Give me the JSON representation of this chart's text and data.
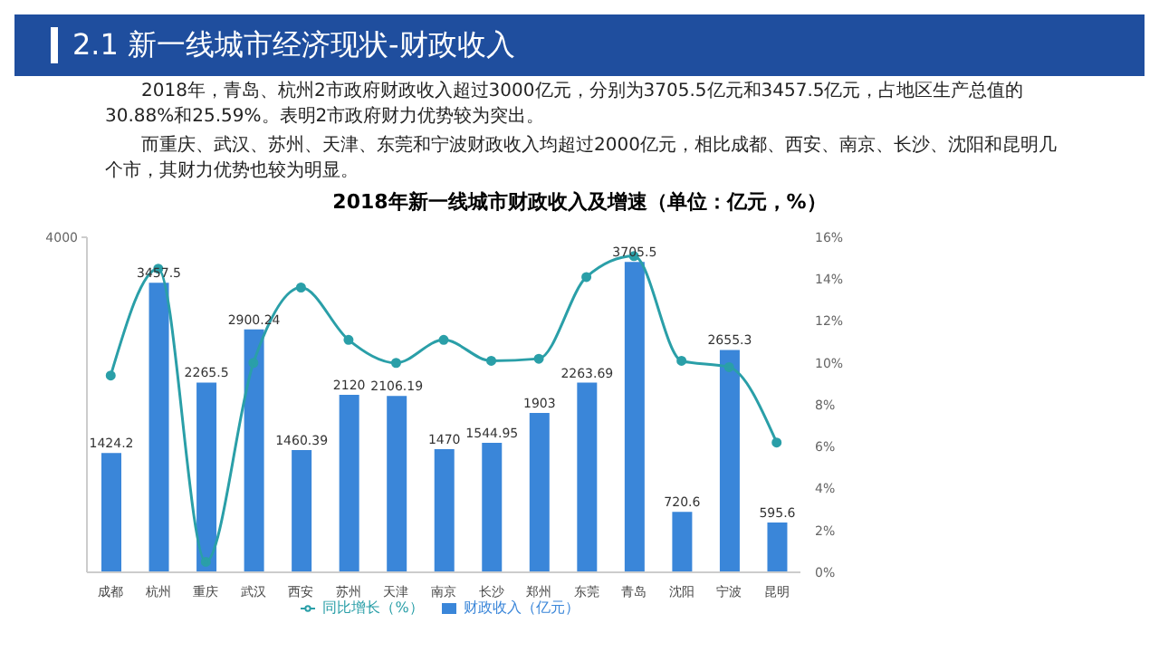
{
  "chart_data": {
    "type": "bar",
    "title": "2018年新一线城市财政收入及增速（单位：亿元，%）",
    "annotations": [
      "2.1 新一线城市经济现状-财政收入",
      "2018年，青岛、杭州2市政府财政收入超过3000亿元，分别为3705.5亿元和3457.5亿元，占地区生产总值的30.88%和25.59%。表明2市政府财力优势较为突出。",
      "而重庆、武汉、苏州、天津、东莞和宁波财政收入均超过2000亿元，相比成都、西安、南京、长沙、沈阳和昆明几个市，其财力优势也较为明显。"
    ],
    "categories": [
      "成都",
      "杭州",
      "重庆",
      "武汉",
      "西安",
      "苏州",
      "天津",
      "南京",
      "长沙",
      "郑州",
      "东莞",
      "青岛",
      "沈阳",
      "宁波",
      "昆明"
    ],
    "series": [
      {
        "name": "财政收入（亿元）",
        "color": "#3a86d9",
        "values": [
          1424.2,
          3457.5,
          2265.5,
          2900.24,
          1460.39,
          2120,
          2106.19,
          1470,
          1544.95,
          1903,
          2263.69,
          3705.5,
          720.6,
          2655.3,
          595.6
        ],
        "value_labels": [
          "1424.2",
          "3457.5",
          "2265.5",
          "2900.24",
          "1460.39",
          "2120",
          "2106.19",
          "1470",
          "1544.95",
          "1903",
          "2263.69",
          "3705.5",
          "720.6",
          "2655.3",
          "595.6"
        ]
      },
      {
        "name": "同比增长（%）",
        "type": "line",
        "axis": "y2",
        "color": "#2a9fa8",
        "values": [
          9.4,
          14.5,
          0.5,
          10,
          13.6,
          11.1,
          10,
          11.1,
          10.1,
          10.2,
          14.1,
          15.1,
          10.1,
          9.8,
          6.2
        ]
      }
    ],
    "ylim": [
      0,
      4000
    ],
    "yticks": [
      4000
    ],
    "y2lim": [
      0,
      16
    ],
    "y2ticks": [
      {
        "value": 0,
        "label": "0%"
      },
      {
        "value": 2,
        "label": "2%"
      },
      {
        "value": 4,
        "label": "4%"
      },
      {
        "value": 6,
        "label": "6%"
      },
      {
        "value": 8,
        "label": "8%"
      },
      {
        "value": 10,
        "label": "10%"
      },
      {
        "value": 12,
        "label": "12%"
      },
      {
        "value": 14,
        "label": "14%"
      },
      {
        "value": 16,
        "label": "16%"
      }
    ],
    "marker": "circle",
    "legend": "bottom",
    "grid": false
  }
}
